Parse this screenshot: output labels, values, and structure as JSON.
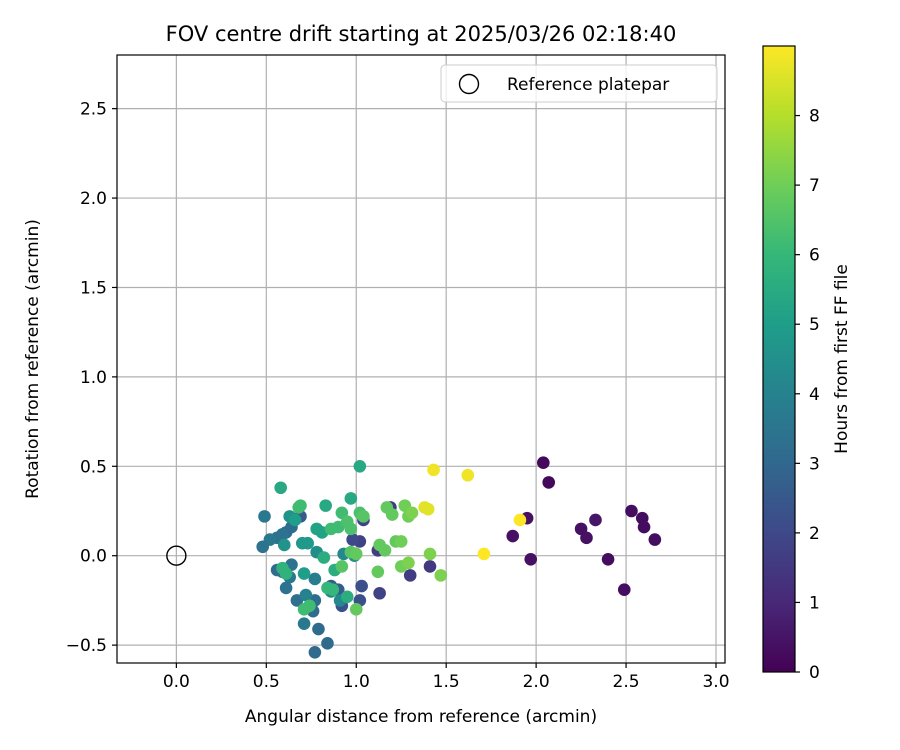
{
  "chart_data": {
    "type": "scatter",
    "title": "FOV centre drift starting at 2025/03/26 02:18:40",
    "xlabel": "Angular distance from reference (arcmin)",
    "ylabel": "Rotation from reference (arcmin)",
    "xlim": [
      -0.33,
      3.05
    ],
    "ylim": [
      -0.6,
      2.8
    ],
    "xticks": [
      0.0,
      0.5,
      1.0,
      1.5,
      2.0,
      2.5,
      3.0
    ],
    "xtick_labels": [
      "0.0",
      "0.5",
      "1.0",
      "1.5",
      "2.0",
      "2.5",
      "3.0"
    ],
    "yticks": [
      -0.5,
      0.0,
      0.5,
      1.0,
      1.5,
      2.0,
      2.5
    ],
    "ytick_labels": [
      "−0.5",
      "0.0",
      "0.5",
      "1.0",
      "1.5",
      "2.0",
      "2.5"
    ],
    "grid": true,
    "legend": {
      "position": "top-right",
      "entries": [
        {
          "label": "Reference platepar",
          "marker": "open-circle"
        }
      ]
    },
    "reference_point": {
      "x": 0.0,
      "y": 0.0
    },
    "colorbar": {
      "label": "Hours from first FF file",
      "colormap": "viridis",
      "range": [
        0,
        9
      ],
      "ticks": [
        0,
        1,
        2,
        3,
        4,
        5,
        6,
        7,
        8
      ],
      "tick_labels": [
        "0",
        "1",
        "2",
        "3",
        "4",
        "5",
        "6",
        "7",
        "8"
      ]
    },
    "points": [
      {
        "x": 2.04,
        "y": 0.52,
        "h": 0.2
      },
      {
        "x": 2.07,
        "y": 0.41,
        "h": 0.2
      },
      {
        "x": 1.95,
        "y": 0.21,
        "h": 0.4
      },
      {
        "x": 1.87,
        "y": 0.11,
        "h": 0.4
      },
      {
        "x": 1.97,
        "y": -0.02,
        "h": 0.4
      },
      {
        "x": 2.53,
        "y": 0.25,
        "h": 0.3
      },
      {
        "x": 2.59,
        "y": 0.21,
        "h": 0.3
      },
      {
        "x": 2.6,
        "y": 0.16,
        "h": 0.3
      },
      {
        "x": 2.66,
        "y": 0.09,
        "h": 0.3
      },
      {
        "x": 2.25,
        "y": 0.15,
        "h": 0.4
      },
      {
        "x": 2.28,
        "y": 0.1,
        "h": 0.4
      },
      {
        "x": 2.33,
        "y": 0.2,
        "h": 0.5
      },
      {
        "x": 2.4,
        "y": -0.02,
        "h": 0.3
      },
      {
        "x": 2.49,
        "y": -0.19,
        "h": 0.3
      },
      {
        "x": 1.41,
        "y": -0.06,
        "h": 1.5
      },
      {
        "x": 1.3,
        "y": -0.11,
        "h": 1.6
      },
      {
        "x": 1.19,
        "y": 0.27,
        "h": 1.5
      },
      {
        "x": 1.12,
        "y": 0.03,
        "h": 1.6
      },
      {
        "x": 1.13,
        "y": -0.21,
        "h": 1.8
      },
      {
        "x": 1.04,
        "y": 0.2,
        "h": 1.8
      },
      {
        "x": 1.02,
        "y": 0.08,
        "h": 1.8
      },
      {
        "x": 0.98,
        "y": 0.09,
        "h": 2.0
      },
      {
        "x": 1.03,
        "y": -0.17,
        "h": 2.2
      },
      {
        "x": 1.02,
        "y": -0.25,
        "h": 2.2
      },
      {
        "x": 0.92,
        "y": -0.28,
        "h": 2.3
      },
      {
        "x": 0.86,
        "y": -0.17,
        "h": 2.6
      },
      {
        "x": 0.9,
        "y": -0.19,
        "h": 2.6
      },
      {
        "x": 0.69,
        "y": 0.22,
        "h": 2.5
      },
      {
        "x": 0.64,
        "y": 0.16,
        "h": 3.2
      },
      {
        "x": 0.61,
        "y": 0.13,
        "h": 3.2
      },
      {
        "x": 0.59,
        "y": 0.12,
        "h": 3.4
      },
      {
        "x": 0.56,
        "y": 0.1,
        "h": 3.4
      },
      {
        "x": 0.52,
        "y": 0.09,
        "h": 3.6
      },
      {
        "x": 0.48,
        "y": 0.05,
        "h": 3.4
      },
      {
        "x": 0.49,
        "y": 0.22,
        "h": 3.6
      },
      {
        "x": 0.56,
        "y": -0.08,
        "h": 3.2
      },
      {
        "x": 0.59,
        "y": -0.09,
        "h": 3.3
      },
      {
        "x": 0.64,
        "y": -0.05,
        "h": 3.4
      },
      {
        "x": 0.63,
        "y": -0.12,
        "h": 3.6
      },
      {
        "x": 0.61,
        "y": -0.18,
        "h": 3.4
      },
      {
        "x": 0.67,
        "y": -0.25,
        "h": 3.3
      },
      {
        "x": 0.74,
        "y": -0.28,
        "h": 3.4
      },
      {
        "x": 0.77,
        "y": -0.25,
        "h": 3.2
      },
      {
        "x": 0.76,
        "y": -0.31,
        "h": 3.1
      },
      {
        "x": 0.79,
        "y": -0.41,
        "h": 3.1
      },
      {
        "x": 0.84,
        "y": -0.49,
        "h": 3.1
      },
      {
        "x": 0.77,
        "y": -0.54,
        "h": 3.1
      },
      {
        "x": 0.71,
        "y": -0.38,
        "h": 3.6
      },
      {
        "x": 0.77,
        "y": -0.13,
        "h": 3.8
      },
      {
        "x": 0.72,
        "y": -0.22,
        "h": 4.0
      },
      {
        "x": 0.86,
        "y": -0.2,
        "h": 4.2
      },
      {
        "x": 0.91,
        "y": -0.25,
        "h": 4.2
      },
      {
        "x": 0.93,
        "y": 0.01,
        "h": 4.2
      },
      {
        "x": 0.99,
        "y": 0.0,
        "h": 4.4
      },
      {
        "x": 0.78,
        "y": 0.02,
        "h": 4.4
      },
      {
        "x": 0.6,
        "y": 0.06,
        "h": 4.6
      },
      {
        "x": 0.63,
        "y": 0.22,
        "h": 4.6
      },
      {
        "x": 0.7,
        "y": 0.07,
        "h": 4.8
      },
      {
        "x": 0.73,
        "y": 0.07,
        "h": 4.8
      },
      {
        "x": 0.71,
        "y": -0.1,
        "h": 5.0
      },
      {
        "x": 0.66,
        "y": 0.2,
        "h": 5.0
      },
      {
        "x": 0.78,
        "y": 0.15,
        "h": 5.2
      },
      {
        "x": 0.81,
        "y": 0.13,
        "h": 5.2
      },
      {
        "x": 0.58,
        "y": 0.38,
        "h": 5.4
      },
      {
        "x": 0.83,
        "y": 0.28,
        "h": 5.4
      },
      {
        "x": 0.97,
        "y": 0.32,
        "h": 5.4
      },
      {
        "x": 1.02,
        "y": 0.5,
        "h": 5.4
      },
      {
        "x": 0.82,
        "y": -0.01,
        "h": 5.6
      },
      {
        "x": 0.88,
        "y": -0.08,
        "h": 5.6
      },
      {
        "x": 0.95,
        "y": -0.23,
        "h": 5.6
      },
      {
        "x": 0.59,
        "y": -0.07,
        "h": 5.8
      },
      {
        "x": 0.61,
        "y": -0.1,
        "h": 5.8
      },
      {
        "x": 0.84,
        "y": -0.18,
        "h": 6.0
      },
      {
        "x": 0.87,
        "y": -0.19,
        "h": 6.0
      },
      {
        "x": 0.71,
        "y": -0.3,
        "h": 6.2
      },
      {
        "x": 0.74,
        "y": -0.28,
        "h": 6.2
      },
      {
        "x": 0.68,
        "y": 0.27,
        "h": 6.2
      },
      {
        "x": 0.69,
        "y": 0.28,
        "h": 6.2
      },
      {
        "x": 0.86,
        "y": 0.15,
        "h": 6.2
      },
      {
        "x": 0.9,
        "y": 0.16,
        "h": 6.2
      },
      {
        "x": 0.92,
        "y": 0.24,
        "h": 6.2
      },
      {
        "x": 0.95,
        "y": 0.19,
        "h": 6.4
      },
      {
        "x": 0.97,
        "y": 0.15,
        "h": 6.4
      },
      {
        "x": 1.02,
        "y": 0.24,
        "h": 6.4
      },
      {
        "x": 1.04,
        "y": 0.22,
        "h": 6.6
      },
      {
        "x": 0.92,
        "y": -0.06,
        "h": 6.6
      },
      {
        "x": 0.97,
        "y": 0.02,
        "h": 6.6
      },
      {
        "x": 1.0,
        "y": 0.01,
        "h": 6.8
      },
      {
        "x": 1.0,
        "y": -0.3,
        "h": 6.8
      },
      {
        "x": 1.13,
        "y": 0.06,
        "h": 6.8
      },
      {
        "x": 1.12,
        "y": -0.09,
        "h": 6.8
      },
      {
        "x": 1.16,
        "y": 0.03,
        "h": 6.8
      },
      {
        "x": 1.17,
        "y": 0.27,
        "h": 6.8
      },
      {
        "x": 1.2,
        "y": 0.23,
        "h": 6.8
      },
      {
        "x": 1.22,
        "y": 0.08,
        "h": 6.8
      },
      {
        "x": 1.25,
        "y": 0.08,
        "h": 7.0
      },
      {
        "x": 1.25,
        "y": -0.06,
        "h": 7.0
      },
      {
        "x": 1.27,
        "y": 0.28,
        "h": 7.0
      },
      {
        "x": 1.29,
        "y": 0.22,
        "h": 7.0
      },
      {
        "x": 1.31,
        "y": 0.24,
        "h": 7.2
      },
      {
        "x": 1.29,
        "y": -0.04,
        "h": 7.2
      },
      {
        "x": 1.41,
        "y": 0.01,
        "h": 7.2
      },
      {
        "x": 1.47,
        "y": -0.11,
        "h": 7.2
      },
      {
        "x": 1.38,
        "y": 0.27,
        "h": 8.6
      },
      {
        "x": 1.4,
        "y": 0.26,
        "h": 8.6
      },
      {
        "x": 1.43,
        "y": 0.48,
        "h": 8.8
      },
      {
        "x": 1.62,
        "y": 0.45,
        "h": 8.8
      },
      {
        "x": 1.71,
        "y": 0.01,
        "h": 9.0
      },
      {
        "x": 1.91,
        "y": 0.2,
        "h": 9.0
      }
    ]
  }
}
